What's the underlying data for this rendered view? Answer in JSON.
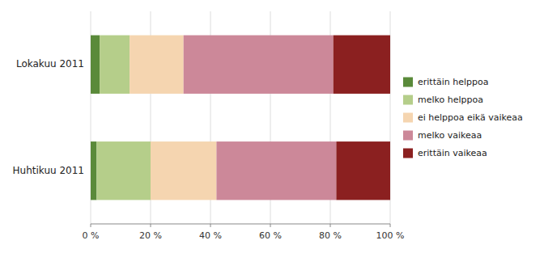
{
  "chart_data": {
    "type": "bar",
    "orientation": "horizontal",
    "stacked": true,
    "categories": [
      "Lokakuu 2011",
      "Huhtikuu 2011"
    ],
    "series": [
      {
        "name": "erittäin helppoa",
        "color": "#5a8a3a",
        "values": [
          3,
          2
        ]
      },
      {
        "name": "melko helppoa",
        "color": "#b5ce8a",
        "values": [
          10,
          18
        ]
      },
      {
        "name": "ei helppoa eikä vaikeaa",
        "color": "#f5d5b0",
        "values": [
          18,
          22
        ]
      },
      {
        "name": "melko vaikeaa",
        "color": "#cc8899",
        "values": [
          50,
          40
        ]
      },
      {
        "name": "erittäin vaikeaa",
        "color": "#8b2020",
        "values": [
          19,
          18
        ]
      }
    ],
    "xlim": [
      0,
      100
    ],
    "xticks": [
      {
        "value": 0,
        "label": "0 %"
      },
      {
        "value": 20,
        "label": "20 %"
      },
      {
        "value": 40,
        "label": "40 %"
      },
      {
        "value": 60,
        "label": "60 %"
      },
      {
        "value": 80,
        "label": "80 %"
      },
      {
        "value": 100,
        "label": "100 %"
      }
    ],
    "grid": true,
    "legend": "right"
  }
}
